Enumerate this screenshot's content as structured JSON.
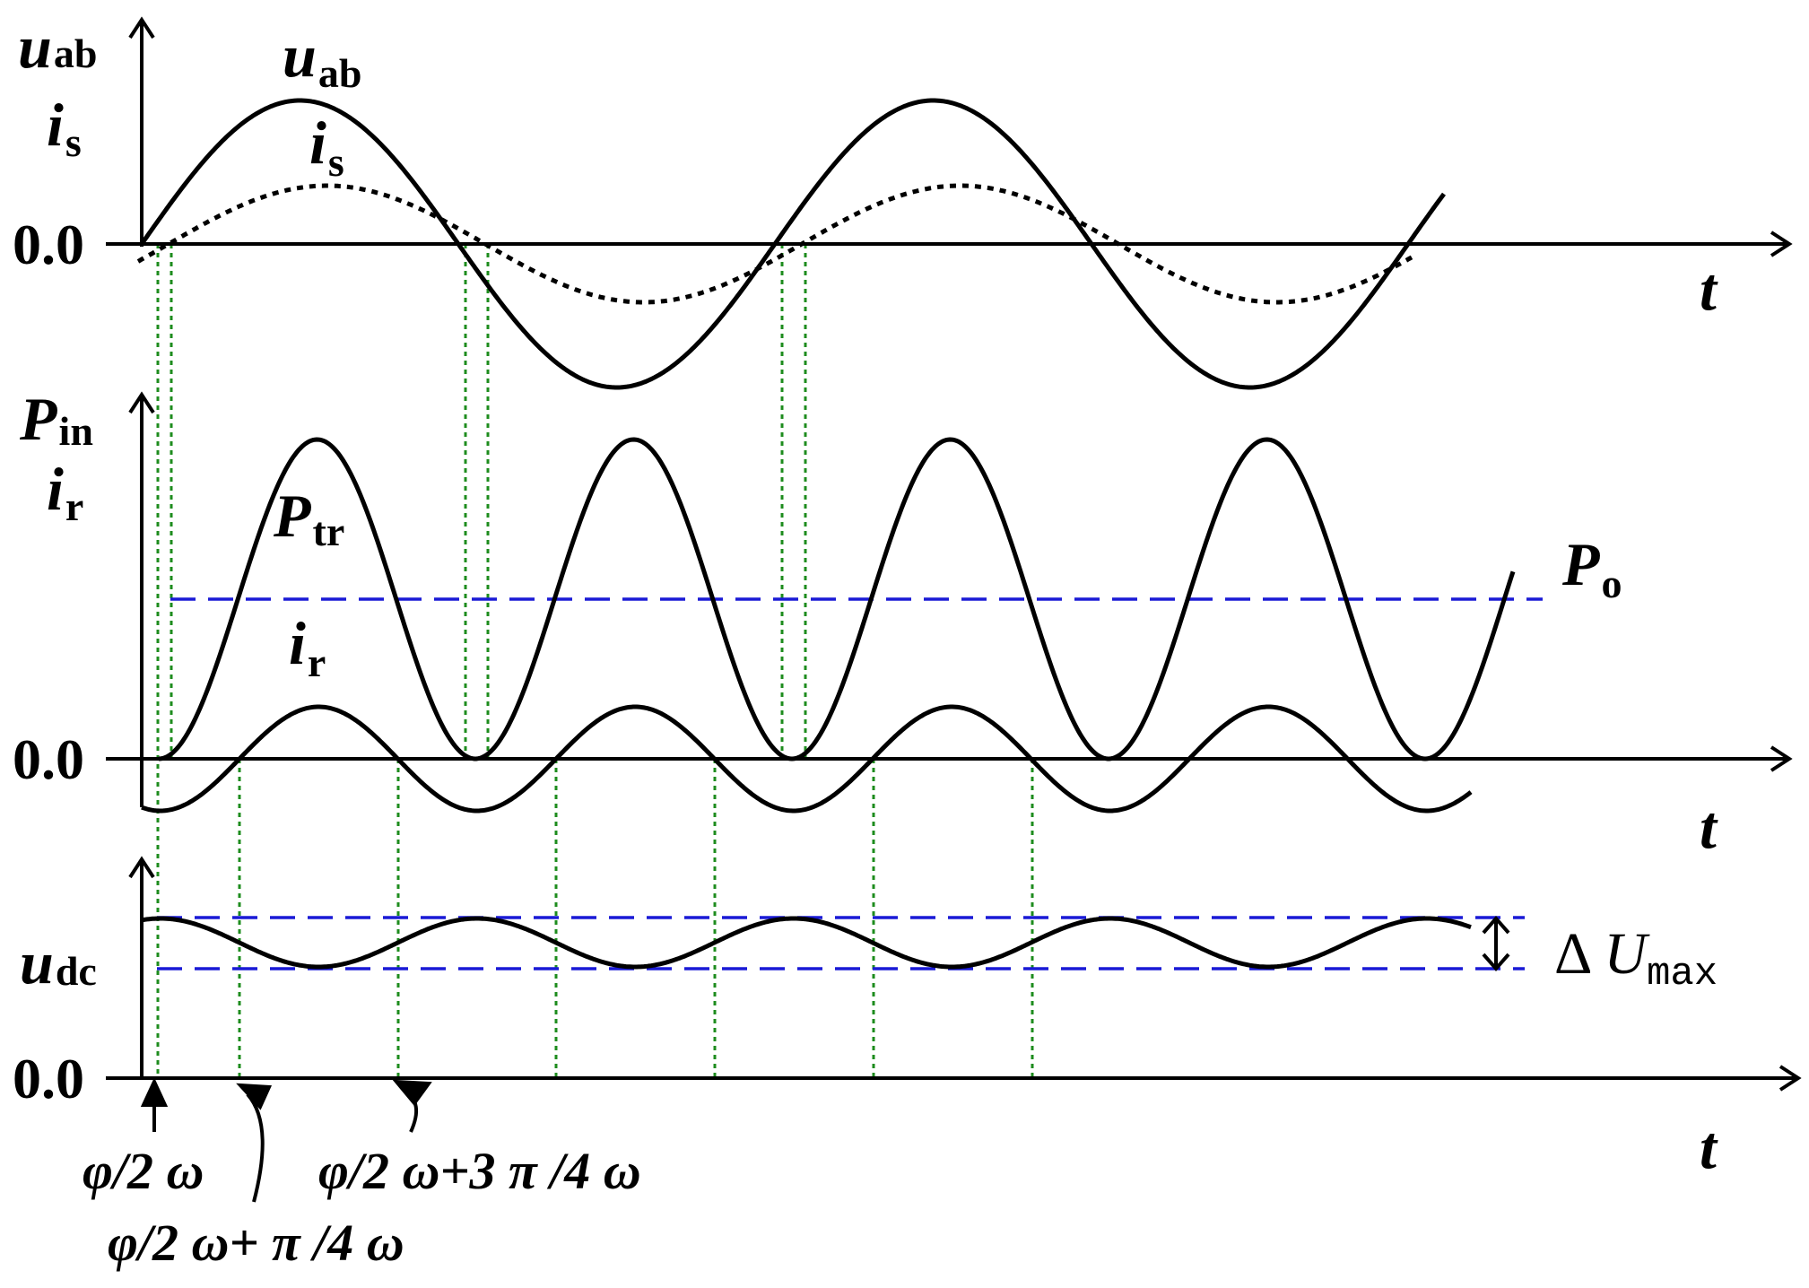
{
  "labels": {
    "panel1_y_u": "u",
    "panel1_y_u_sub": "ab",
    "panel1_y_i": "i",
    "panel1_y_i_sub": "s",
    "curve_uab": "u",
    "curve_uab_sub": "ab",
    "curve_is": "i",
    "curve_is_sub": "s",
    "panel2_y_p": "P",
    "panel2_y_p_sub": "in",
    "panel2_y_i": "i",
    "panel2_y_i_sub": "r",
    "curve_ptr": "P",
    "curve_ptr_sub": "tr",
    "curve_ir": "i",
    "curve_ir_sub": "r",
    "po": "P",
    "po_sub": "o",
    "panel3_y_u": "u",
    "panel3_y_u_sub": "dc",
    "delta_prefix": "Δ ",
    "delta_u": "U",
    "delta_sub": "max",
    "zero1": "0.0",
    "zero2": "0.0",
    "zero3": "0.0",
    "t1": "t",
    "t2": "t",
    "t3": "t",
    "ann1": "φ/2 ω",
    "ann2": "φ/2 ω+ π /4 ω",
    "ann3": "φ/2 ω+3 π /4 ω"
  },
  "colors": {
    "curve": "#000000",
    "ref_dashed": "#1a1ad6",
    "marker_dotted": "#1e8c1e"
  }
}
